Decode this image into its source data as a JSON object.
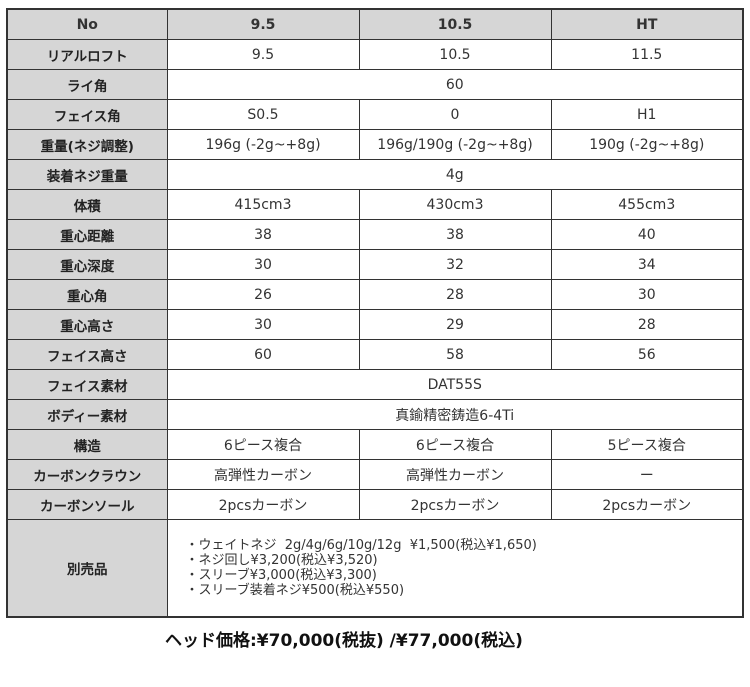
{
  "header": {
    "label": "No",
    "cols": [
      "9.5",
      "10.5",
      "HT"
    ]
  },
  "rows": [
    {
      "label": "リアルロフト",
      "values": [
        "9.5",
        "10.5",
        "11.5"
      ]
    },
    {
      "label": "ライ角",
      "span": "60"
    },
    {
      "label": "フェイス角",
      "values": [
        "S0.5",
        "0",
        "H1"
      ]
    },
    {
      "label": "重量(ネジ調整)",
      "values": [
        "196g (-2g~+8g)",
        "196g/190g (-2g~+8g)",
        "190g (-2g~+8g)"
      ]
    },
    {
      "label": "装着ネジ重量",
      "span": "4g"
    },
    {
      "label": "体積",
      "values": [
        "415cm3",
        "430cm3",
        "455cm3"
      ]
    },
    {
      "label": "重心距離",
      "values": [
        "38",
        "38",
        "40"
      ]
    },
    {
      "label": "重心深度",
      "values": [
        "30",
        "32",
        "34"
      ]
    },
    {
      "label": "重心角",
      "values": [
        "26",
        "28",
        "30"
      ]
    },
    {
      "label": "重心高さ",
      "values": [
        "30",
        "29",
        "28"
      ]
    },
    {
      "label": "フェイス高さ",
      "values": [
        "60",
        "58",
        "56"
      ]
    },
    {
      "label": "フェイス素材",
      "span": "DAT55S"
    },
    {
      "label": "ボディー素材",
      "span": "真鍮精密鋳造6-4Ti"
    },
    {
      "label": "構造",
      "values": [
        "6ピース複合",
        "6ピース複合",
        "5ピース複合"
      ]
    },
    {
      "label": "カーボンクラウン",
      "values": [
        "高弾性カーボン",
        "高弾性カーボン",
        "ー"
      ]
    },
    {
      "label": "カーボンソール",
      "values": [
        "2pcsカーボン",
        "2pcsカーボン",
        "2pcsカーボン"
      ]
    }
  ],
  "accessories": {
    "label": "別売品",
    "items": [
      "・ウェイトネジ  2g/4g/6g/10g/12g  ¥1,500(税込¥1,650)",
      "・ネジ回し¥3,200(税込¥3,520)",
      "・スリーブ¥3,000(税込¥3,300)",
      "・スリーブ装着ネジ¥500(税込¥550)"
    ]
  },
  "price": "ヘッド価格:¥70,000(税抜) /¥77,000(税込)"
}
